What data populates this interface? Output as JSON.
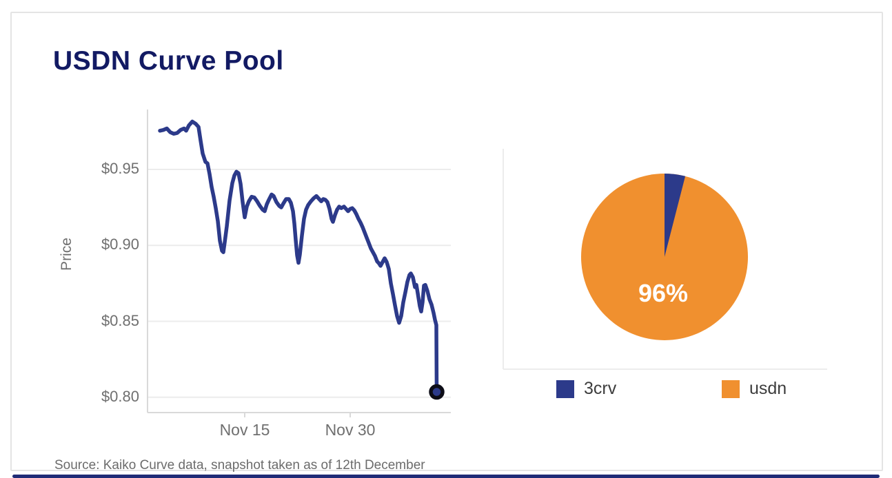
{
  "card": {
    "title": "USDN Curve Pool",
    "source_note": "Source: Kaiko Curve data, snapshot taken as of 12th December"
  },
  "colors": {
    "title_navy": "#121a63",
    "line_navy": "#2c3a8a",
    "pie_orange": "#f0902f",
    "dot_ring": "#0d0d17",
    "axis_text": "#6f6f6f",
    "grid_line": "#ececec",
    "axis_line": "#d9d9d9",
    "legend_text": "#3d3d3d",
    "accent_bar": "#1f2b76"
  },
  "chart_data": [
    {
      "type": "line",
      "name": "usdn-curve-pool-price",
      "ylabel": "Price",
      "ylim": [
        0.79,
        0.99
      ],
      "y_ticks": [
        {
          "label": "$0.95",
          "value": 0.95
        },
        {
          "label": "$0.90",
          "value": 0.9
        },
        {
          "label": "$0.85",
          "value": 0.85
        },
        {
          "label": "$0.80",
          "value": 0.8
        }
      ],
      "x_ticks": [
        {
          "label": "Nov 15",
          "day": 12.3
        },
        {
          "label": "Nov 30",
          "day": 27.6
        }
      ],
      "points": [
        [
          0,
          0.9755
        ],
        [
          0.5,
          0.976
        ],
        [
          1,
          0.977
        ],
        [
          1.5,
          0.9745
        ],
        [
          2,
          0.9735
        ],
        [
          2.5,
          0.974
        ],
        [
          3,
          0.976
        ],
        [
          3.5,
          0.977
        ],
        [
          3.8,
          0.9755
        ],
        [
          4.2,
          0.979
        ],
        [
          4.7,
          0.9815
        ],
        [
          5.2,
          0.98
        ],
        [
          5.6,
          0.978
        ],
        [
          5.9,
          0.969
        ],
        [
          6.2,
          0.9605
        ],
        [
          6.6,
          0.955
        ],
        [
          6.9,
          0.954
        ],
        [
          7.2,
          0.947
        ],
        [
          7.5,
          0.9385
        ],
        [
          7.8,
          0.932
        ],
        [
          8.1,
          0.9245
        ],
        [
          8.4,
          0.916
        ],
        [
          8.7,
          0.903
        ],
        [
          9.0,
          0.8965
        ],
        [
          9.2,
          0.8955
        ],
        [
          9.4,
          0.902
        ],
        [
          9.7,
          0.9125
        ],
        [
          10.1,
          0.9295
        ],
        [
          10.5,
          0.941
        ],
        [
          10.8,
          0.946
        ],
        [
          11.1,
          0.9485
        ],
        [
          11.4,
          0.9475
        ],
        [
          11.7,
          0.9405
        ],
        [
          12.0,
          0.9285
        ],
        [
          12.3,
          0.9185
        ],
        [
          12.6,
          0.9255
        ],
        [
          12.9,
          0.929
        ],
        [
          13.3,
          0.932
        ],
        [
          13.7,
          0.9315
        ],
        [
          14.1,
          0.929
        ],
        [
          14.5,
          0.926
        ],
        [
          14.9,
          0.9235
        ],
        [
          15.2,
          0.9225
        ],
        [
          15.5,
          0.927
        ],
        [
          15.8,
          0.93
        ],
        [
          16.2,
          0.9335
        ],
        [
          16.5,
          0.9325
        ],
        [
          16.9,
          0.9285
        ],
        [
          17.3,
          0.926
        ],
        [
          17.6,
          0.925
        ],
        [
          17.9,
          0.9275
        ],
        [
          18.3,
          0.9305
        ],
        [
          18.7,
          0.9305
        ],
        [
          19.0,
          0.928
        ],
        [
          19.3,
          0.9225
        ],
        [
          19.5,
          0.9145
        ],
        [
          19.7,
          0.9035
        ],
        [
          19.9,
          0.8935
        ],
        [
          20.1,
          0.8885
        ],
        [
          20.3,
          0.894
        ],
        [
          20.6,
          0.9065
        ],
        [
          20.9,
          0.9175
        ],
        [
          21.2,
          0.9235
        ],
        [
          21.5,
          0.9265
        ],
        [
          21.9,
          0.929
        ],
        [
          22.3,
          0.931
        ],
        [
          22.7,
          0.9325
        ],
        [
          23.1,
          0.9305
        ],
        [
          23.4,
          0.929
        ],
        [
          23.7,
          0.9305
        ],
        [
          24.0,
          0.93
        ],
        [
          24.3,
          0.9285
        ],
        [
          24.6,
          0.924
        ],
        [
          24.9,
          0.9175
        ],
        [
          25.1,
          0.9155
        ],
        [
          25.4,
          0.92
        ],
        [
          25.7,
          0.9235
        ],
        [
          26.0,
          0.9255
        ],
        [
          26.3,
          0.9245
        ],
        [
          26.7,
          0.9255
        ],
        [
          27.0,
          0.924
        ],
        [
          27.3,
          0.9225
        ],
        [
          27.6,
          0.924
        ],
        [
          27.9,
          0.9245
        ],
        [
          28.2,
          0.923
        ],
        [
          28.5,
          0.9205
        ],
        [
          28.8,
          0.9175
        ],
        [
          29.1,
          0.915
        ],
        [
          29.4,
          0.912
        ],
        [
          29.7,
          0.9085
        ],
        [
          30.0,
          0.905
        ],
        [
          30.3,
          0.9015
        ],
        [
          30.6,
          0.898
        ],
        [
          30.9,
          0.8955
        ],
        [
          31.2,
          0.893
        ],
        [
          31.5,
          0.8895
        ],
        [
          31.8,
          0.888
        ],
        [
          32.0,
          0.8865
        ],
        [
          32.3,
          0.889
        ],
        [
          32.6,
          0.8915
        ],
        [
          32.9,
          0.889
        ],
        [
          33.2,
          0.8845
        ],
        [
          33.5,
          0.875
        ],
        [
          33.8,
          0.868
        ],
        [
          34.1,
          0.8605
        ],
        [
          34.4,
          0.8535
        ],
        [
          34.7,
          0.849
        ],
        [
          35.0,
          0.8535
        ],
        [
          35.3,
          0.8625
        ],
        [
          35.6,
          0.869
        ],
        [
          35.9,
          0.876
        ],
        [
          36.2,
          0.8805
        ],
        [
          36.4,
          0.8815
        ],
        [
          36.7,
          0.879
        ],
        [
          37.0,
          0.8725
        ],
        [
          37.2,
          0.874
        ],
        [
          37.4,
          0.8685
        ],
        [
          37.7,
          0.86
        ],
        [
          37.9,
          0.8565
        ],
        [
          38.1,
          0.8625
        ],
        [
          38.3,
          0.8735
        ],
        [
          38.5,
          0.874
        ],
        [
          38.8,
          0.87
        ],
        [
          39.1,
          0.8645
        ],
        [
          39.4,
          0.861
        ],
        [
          39.7,
          0.8555
        ],
        [
          39.9,
          0.851
        ],
        [
          40.1,
          0.8475
        ],
        [
          40.15,
          0.8035
        ]
      ],
      "end_marker": {
        "day": 40.15,
        "price": 0.8035
      }
    },
    {
      "type": "pie",
      "center_label": "96%",
      "slices": [
        {
          "label": "3crv",
          "pct": 4,
          "color_key": "line_navy"
        },
        {
          "label": "usdn",
          "pct": 96,
          "color_key": "pie_orange"
        }
      ]
    }
  ]
}
